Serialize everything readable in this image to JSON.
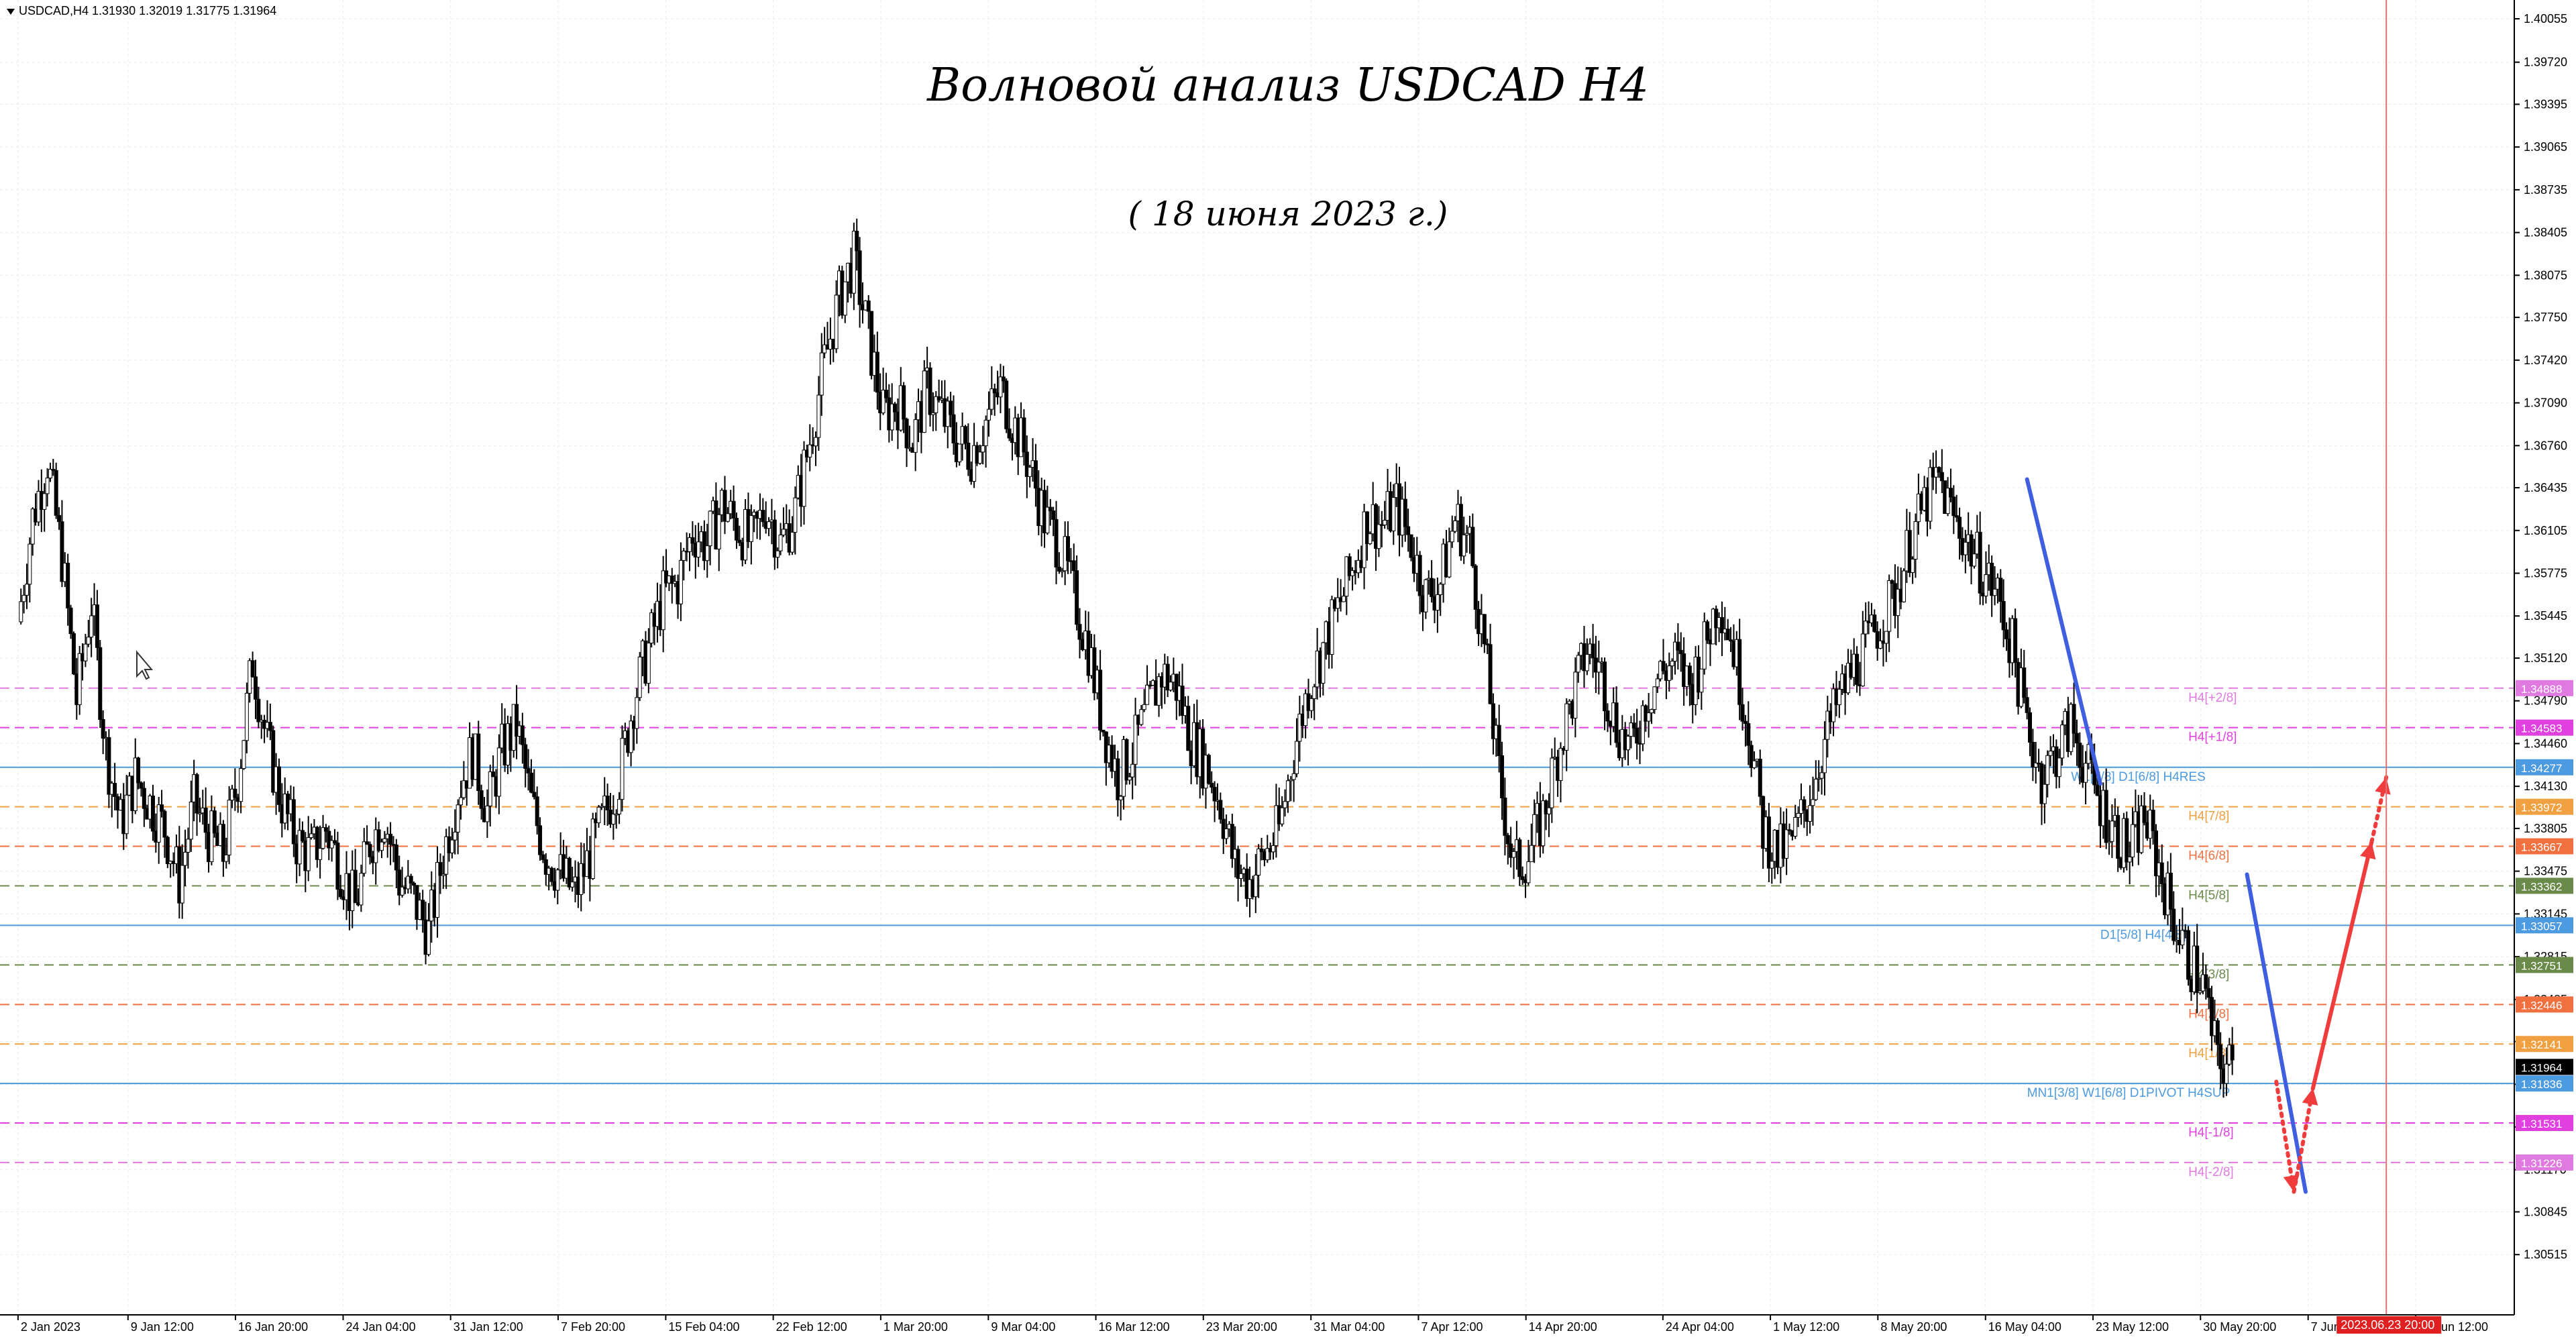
{
  "header": {
    "symbol_info": "USDCAD,H4  1.31930 1.32019 1.31775 1.31964"
  },
  "annotations": {
    "main_title": "Волновой анализ USDCAD H4",
    "sub_title": "( 18 июня 2023 г.)"
  },
  "colors": {
    "background": "#ffffff",
    "grid": "#e6e6e6",
    "candle": "#000000",
    "wave_line": "#3f5fe0",
    "forecast_arrow": "#f03c3c",
    "vertical_marker": "#e07070"
  },
  "chart_data": {
    "type": "candlestick",
    "symbol": "USDCAD",
    "timeframe": "H4",
    "ylim": [
      1.3005,
      1.402
    ],
    "y_ticks": [
      "1.40055",
      "1.39720",
      "1.39395",
      "1.39065",
      "1.38735",
      "1.38405",
      "1.38075",
      "1.37750",
      "1.37420",
      "1.37090",
      "1.36760",
      "1.36435",
      "1.36105",
      "1.35775",
      "1.35445",
      "1.35120",
      "1.34790",
      "1.34460",
      "1.34130",
      "1.33805",
      "1.33475",
      "1.33145",
      "1.32815",
      "1.32485",
      "1.32160",
      "1.31830",
      "1.31500",
      "1.31170",
      "1.30845",
      "1.30515"
    ],
    "x_ticks": [
      {
        "label": "2 Jan 2023",
        "day": 2
      },
      {
        "label": "9 Jan 12:00",
        "day": 9.5
      },
      {
        "label": "16 Jan 20:00",
        "day": 16.83
      },
      {
        "label": "24 Jan 04:00",
        "day": 24.17
      },
      {
        "label": "31 Jan 12:00",
        "day": 31.5
      },
      {
        "label": "7 Feb 20:00",
        "day": 38.83
      },
      {
        "label": "15 Feb 04:00",
        "day": 46.17
      },
      {
        "label": "22 Feb 12:00",
        "day": 53.5
      },
      {
        "label": "1 Mar 20:00",
        "day": 60.83
      },
      {
        "label": "9 Mar 04:00",
        "day": 68.17
      },
      {
        "label": "16 Mar 12:00",
        "day": 75.5
      },
      {
        "label": "23 Mar 20:00",
        "day": 82.83
      },
      {
        "label": "31 Mar 04:00",
        "day": 90.17
      },
      {
        "label": "7 Apr 12:00",
        "day": 97.5
      },
      {
        "label": "14 Apr 20:00",
        "day": 104.83
      },
      {
        "label": "24 Apr 04:00",
        "day": 114.17
      },
      {
        "label": "1 May 12:00",
        "day": 121.5
      },
      {
        "label": "8 May 20:00",
        "day": 128.83
      },
      {
        "label": "16 May 04:00",
        "day": 136.17
      },
      {
        "label": "23 May 12:00",
        "day": 143.5
      },
      {
        "label": "30 May 20:00",
        "day": 150.83
      },
      {
        "label": "7 Jun 04:00",
        "day": 158.17
      },
      {
        "label": "14 Jun 12:00",
        "day": 165.5
      }
    ],
    "x_highlight_label": "2023.06.23 20:00",
    "path_points": [
      [
        2,
        1.354
      ],
      [
        3,
        1.362
      ],
      [
        4,
        1.3665
      ],
      [
        5,
        1.359
      ],
      [
        6,
        1.348
      ],
      [
        7,
        1.3555
      ],
      [
        8,
        1.344
      ],
      [
        9,
        1.3385
      ],
      [
        10,
        1.342
      ],
      [
        11,
        1.34
      ],
      [
        12,
        1.338
      ],
      [
        13,
        1.334
      ],
      [
        14,
        1.34
      ],
      [
        15,
        1.3375
      ],
      [
        16,
        1.336
      ],
      [
        17,
        1.342
      ],
      [
        18,
        1.351
      ],
      [
        19,
        1.3445
      ],
      [
        20,
        1.34
      ],
      [
        21,
        1.337
      ],
      [
        22,
        1.336
      ],
      [
        23,
        1.338
      ],
      [
        24,
        1.335
      ],
      [
        25,
        1.332
      ],
      [
        26,
        1.337
      ],
      [
        27,
        1.339
      ],
      [
        28,
        1.334
      ],
      [
        29,
        1.3325
      ],
      [
        30,
        1.33
      ],
      [
        31,
        1.336
      ],
      [
        32,
        1.341
      ],
      [
        33,
        1.344
      ],
      [
        34,
        1.3395
      ],
      [
        35,
        1.344
      ],
      [
        36,
        1.346
      ],
      [
        37,
        1.34
      ],
      [
        38,
        1.336
      ],
      [
        39,
        1.3345
      ],
      [
        40,
        1.333
      ],
      [
        41,
        1.336
      ],
      [
        42,
        1.339
      ],
      [
        43,
        1.342
      ],
      [
        44,
        1.348
      ],
      [
        45,
        1.352
      ],
      [
        46,
        1.356
      ],
      [
        47,
        1.357
      ],
      [
        48,
        1.361
      ],
      [
        49,
        1.36
      ],
      [
        50,
        1.363
      ],
      [
        51,
        1.3615
      ],
      [
        52,
        1.36
      ],
      [
        53,
        1.363
      ],
      [
        54,
        1.36
      ],
      [
        55,
        1.3625
      ],
      [
        56,
        1.368
      ],
      [
        57,
        1.374
      ],
      [
        58,
        1.379
      ],
      [
        59,
        1.382
      ],
      [
        60,
        1.376
      ],
      [
        61,
        1.37
      ],
      [
        62,
        1.371
      ],
      [
        63,
        1.368
      ],
      [
        64,
        1.372
      ],
      [
        65,
        1.37
      ],
      [
        66,
        1.368
      ],
      [
        67,
        1.367
      ],
      [
        68,
        1.3695
      ],
      [
        69,
        1.372
      ],
      [
        70,
        1.369
      ],
      [
        71,
        1.366
      ],
      [
        72,
        1.362
      ],
      [
        73,
        1.36
      ],
      [
        74,
        1.356
      ],
      [
        75,
        1.352
      ],
      [
        76,
        1.346
      ],
      [
        77,
        1.342
      ],
      [
        78,
        1.344
      ],
      [
        79,
        1.347
      ],
      [
        80,
        1.35
      ],
      [
        81,
        1.349
      ],
      [
        82,
        1.345
      ],
      [
        83,
        1.343
      ],
      [
        84,
        1.34
      ],
      [
        85,
        1.335
      ],
      [
        86,
        1.334
      ],
      [
        87,
        1.336
      ],
      [
        88,
        1.338
      ],
      [
        89,
        1.344
      ],
      [
        90,
        1.349
      ],
      [
        91,
        1.352
      ],
      [
        92,
        1.355
      ],
      [
        93,
        1.358
      ],
      [
        94,
        1.362
      ],
      [
        95,
        1.3615
      ],
      [
        96,
        1.363
      ],
      [
        97,
        1.36
      ],
      [
        98,
        1.356
      ],
      [
        99,
        1.357
      ],
      [
        100,
        1.362
      ],
      [
        101,
        1.36
      ],
      [
        102,
        1.352
      ],
      [
        103,
        1.342
      ],
      [
        104,
        1.335
      ],
      [
        105,
        1.336
      ],
      [
        106,
        1.339
      ],
      [
        107,
        1.344
      ],
      [
        108,
        1.348
      ],
      [
        109,
        1.352
      ],
      [
        110,
        1.35
      ],
      [
        111,
        1.346
      ],
      [
        112,
        1.344
      ],
      [
        113,
        1.348
      ],
      [
        114,
        1.35
      ],
      [
        115,
        1.351
      ],
      [
        116,
        1.349
      ],
      [
        117,
        1.352
      ],
      [
        118,
        1.356
      ],
      [
        119,
        1.352
      ],
      [
        120,
        1.346
      ],
      [
        121,
        1.338
      ],
      [
        122,
        1.336
      ],
      [
        123,
        1.337
      ],
      [
        124,
        1.34
      ],
      [
        125,
        1.344
      ],
      [
        126,
        1.3475
      ],
      [
        127,
        1.35
      ],
      [
        128,
        1.352
      ],
      [
        129,
        1.354
      ],
      [
        130,
        1.356
      ],
      [
        131,
        1.36
      ],
      [
        132,
        1.363
      ],
      [
        133,
        1.365
      ],
      [
        134,
        1.362
      ],
      [
        135,
        1.36
      ],
      [
        136,
        1.358
      ],
      [
        137,
        1.356
      ],
      [
        138,
        1.352
      ],
      [
        139,
        1.346
      ],
      [
        140,
        1.342
      ],
      [
        141,
        1.344
      ],
      [
        142,
        1.346
      ],
      [
        143,
        1.343
      ],
      [
        144,
        1.34
      ],
      [
        145,
        1.338
      ],
      [
        146,
        1.336
      ],
      [
        147,
        1.339
      ],
      [
        148,
        1.335
      ],
      [
        149,
        1.331
      ],
      [
        150,
        1.328
      ],
      [
        151,
        1.326
      ],
      [
        152,
        1.32
      ],
      [
        153,
        1.3196
      ]
    ],
    "fractal_levels": [
      {
        "label": "H4[+2/8]",
        "price": 1.34888,
        "color": "#e07ae0",
        "price_label": "1.34888",
        "label_day": 150
      },
      {
        "label": "H4[+1/8]",
        "price": 1.34583,
        "color": "#e040e0",
        "price_label": "1.34583",
        "label_day": 150
      },
      {
        "label": "W1[7/8] D1[6/8] H4RES",
        "price": 1.34277,
        "color": "#4c9ae0",
        "price_label": "1.34277",
        "label_day": 142
      },
      {
        "label": "H4[7/8]",
        "price": 1.33972,
        "color": "#f0a040",
        "price_label": "1.33972",
        "label_day": 150
      },
      {
        "label": "H4[6/8]",
        "price": 1.33667,
        "color": "#f07040",
        "price_label": "1.33667",
        "label_day": 150
      },
      {
        "label": "H4[5/8]",
        "price": 1.33362,
        "color": "#6a8a4a",
        "price_label": "1.33362",
        "label_day": 150
      },
      {
        "label": "D1[5/8] H4[4/8]",
        "price": 1.33057,
        "color": "#4c9ae0",
        "price_label": "1.33057",
        "label_day": 144
      },
      {
        "label": "H4[3/8]",
        "price": 1.32751,
        "color": "#6a8a4a",
        "price_label": "1.32751",
        "label_day": 150
      },
      {
        "label": "H4[2/8]",
        "price": 1.32446,
        "color": "#f07040",
        "price_label": "1.32446",
        "label_day": 150
      },
      {
        "label": "H4[1/8]",
        "price": 1.32141,
        "color": "#f0a040",
        "price_label": "1.32141",
        "label_day": 150
      },
      {
        "label": "MN1[3/8] W1[6/8] D1PIVOT H4SUP",
        "price": 1.31836,
        "color": "#4c9ae0",
        "price_label": "1.31836",
        "label_day": 139
      },
      {
        "label": "H4[-1/8]",
        "price": 1.31531,
        "color": "#e040e0",
        "price_label": "1.31531",
        "label_day": 150
      },
      {
        "label": "H4[-2/8]",
        "price": 1.31226,
        "color": "#e07ae0",
        "price_label": "1.31226",
        "label_day": 150
      }
    ],
    "current_price_label": "1.31964",
    "current_price": 1.31964,
    "wave_lines": [
      {
        "from": [
          139,
          1.365
        ],
        "to": [
          144,
          1.3415
        ]
      },
      {
        "from": [
          154,
          1.3345
        ],
        "to": [
          158,
          1.31
        ]
      }
    ],
    "forecast": {
      "dotted_down": {
        "from": [
          156,
          1.3185
        ],
        "to": [
          157.2,
          1.31
        ]
      },
      "dotted_up": {
        "from": [
          157.2,
          1.31
        ],
        "to": [
          158.5,
          1.318
        ]
      },
      "solid_up": {
        "from": [
          158.5,
          1.318
        ],
        "to": [
          162.5,
          1.337
        ]
      },
      "dotted_up2": {
        "from": [
          162.5,
          1.337
        ],
        "to": [
          163.5,
          1.342
        ]
      }
    },
    "vertical_marker_day": 163.5
  }
}
